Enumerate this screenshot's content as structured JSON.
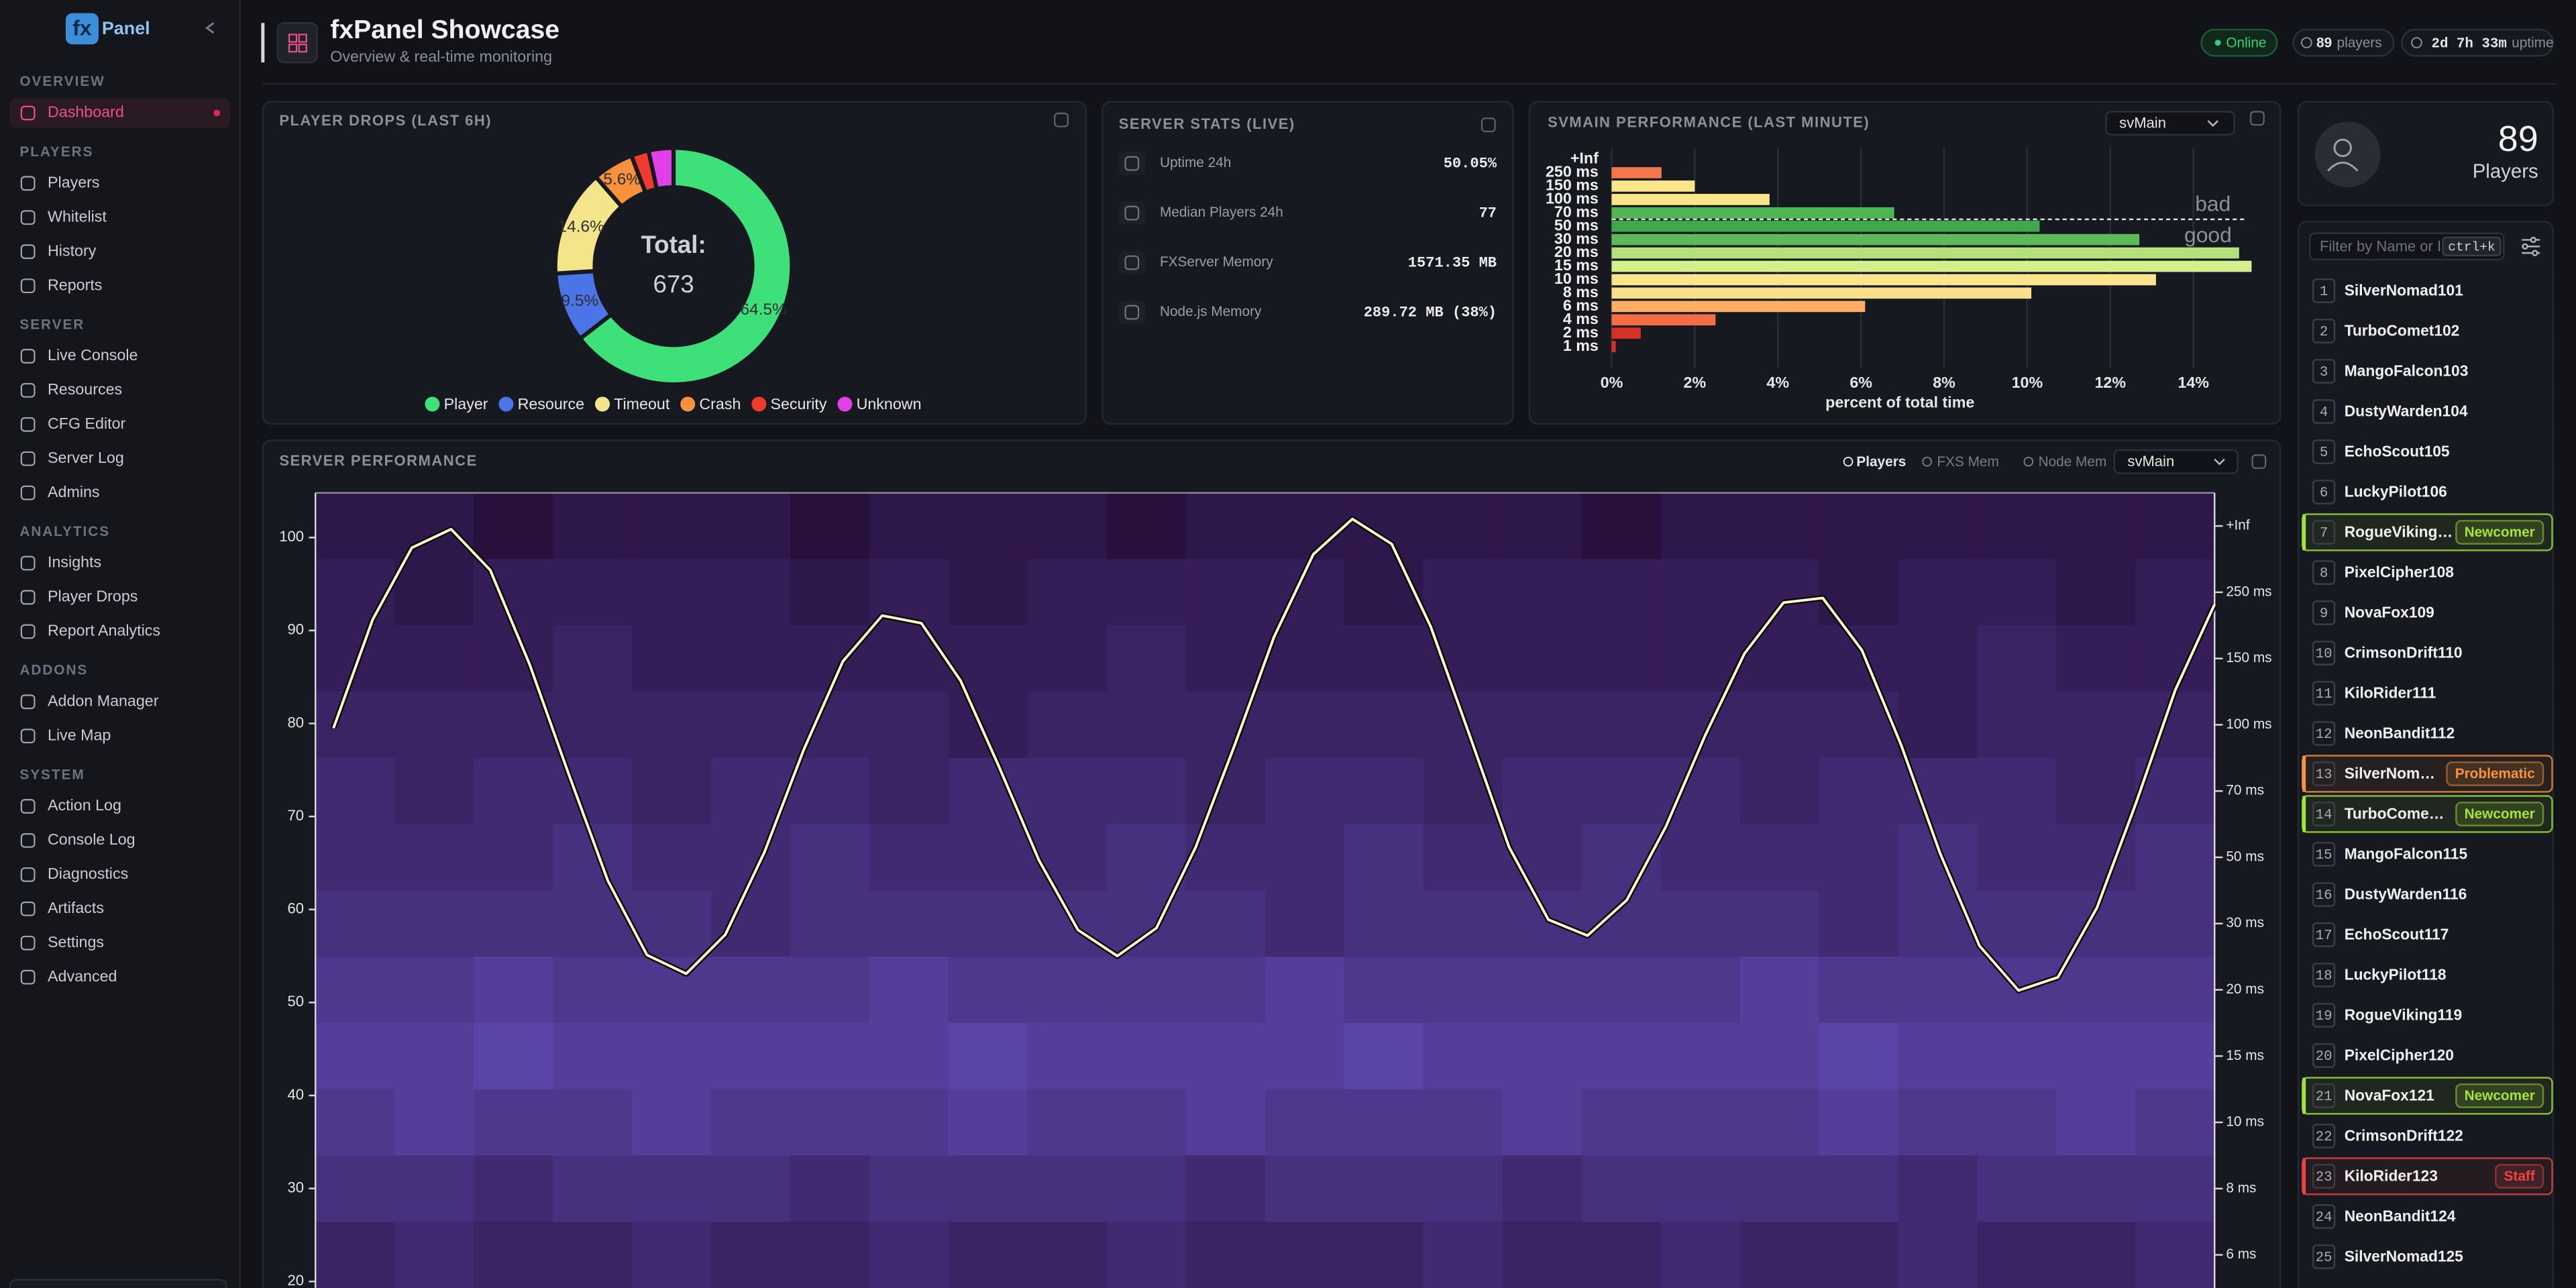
{
  "sidebar": {
    "logo": {
      "mark": "fx",
      "text": "Panel"
    },
    "active_item": "Dashboard",
    "sections": [
      {
        "title": "OVERVIEW",
        "items": [
          "Dashboard"
        ]
      },
      {
        "title": "PLAYERS",
        "items": [
          "Players",
          "Whitelist",
          "History",
          "Reports"
        ]
      },
      {
        "title": "SERVER",
        "items": [
          "Live Console",
          "Resources",
          "CFG Editor",
          "Server Log",
          "Admins"
        ]
      },
      {
        "title": "ANALYTICS",
        "items": [
          "Insights",
          "Player Drops",
          "Report Analytics"
        ]
      },
      {
        "title": "ADDONS",
        "items": [
          "Addon Manager",
          "Live Map"
        ]
      },
      {
        "title": "SYSTEM",
        "items": [
          "Action Log",
          "Console Log",
          "Diagnostics",
          "Artifacts",
          "Settings",
          "Advanced"
        ]
      }
    ]
  },
  "header": {
    "title": "fxPanel Showcase",
    "subtitle": "Overview & real-time monitoring",
    "status": "Online",
    "players": "89",
    "players_unit": "players",
    "uptime": "2d 7h 33m",
    "uptime_unit": "uptime"
  },
  "server_stats": {
    "title": "SERVER STATS (LIVE)",
    "rows": [
      {
        "label": "Uptime 24h",
        "value": "50.05%"
      },
      {
        "label": "Median Players 24h",
        "value": "77"
      },
      {
        "label": "FXServer Memory",
        "value": "1571.35 MB"
      },
      {
        "label": "Node.js Memory",
        "value": "289.72 MB (38%)"
      }
    ]
  },
  "players_panel": {
    "count": "89",
    "label": "Players",
    "filter_placeholder": "Filter by Name or I",
    "shortcut": "ctrl+k",
    "tag_colors": {
      "Newcomer": "#a3e635",
      "Problematic": "#fb923c",
      "Staff": "#ef4444"
    },
    "players": [
      {
        "rank": 1,
        "name": "SilverNomad101"
      },
      {
        "rank": 2,
        "name": "TurboComet102"
      },
      {
        "rank": 3,
        "name": "MangoFalcon103"
      },
      {
        "rank": 4,
        "name": "DustyWarden104"
      },
      {
        "rank": 5,
        "name": "EchoScout105"
      },
      {
        "rank": 6,
        "name": "LuckyPilot106"
      },
      {
        "rank": 7,
        "name": "RogueViking…",
        "tag": "Newcomer"
      },
      {
        "rank": 8,
        "name": "PixelCipher108"
      },
      {
        "rank": 9,
        "name": "NovaFox109"
      },
      {
        "rank": 10,
        "name": "CrimsonDrift110"
      },
      {
        "rank": 11,
        "name": "KiloRider111"
      },
      {
        "rank": 12,
        "name": "NeonBandit112"
      },
      {
        "rank": 13,
        "name": "SilverNom…",
        "tag": "Problematic"
      },
      {
        "rank": 14,
        "name": "TurboCome…",
        "tag": "Newcomer"
      },
      {
        "rank": 15,
        "name": "MangoFalcon115"
      },
      {
        "rank": 16,
        "name": "DustyWarden116"
      },
      {
        "rank": 17,
        "name": "EchoScout117"
      },
      {
        "rank": 18,
        "name": "LuckyPilot118"
      },
      {
        "rank": 19,
        "name": "RogueViking119"
      },
      {
        "rank": 20,
        "name": "PixelCipher120"
      },
      {
        "rank": 21,
        "name": "NovaFox121",
        "tag": "Newcomer"
      },
      {
        "rank": 22,
        "name": "CrimsonDrift122"
      },
      {
        "rank": 23,
        "name": "KiloRider123",
        "tag": "Staff"
      },
      {
        "rank": 24,
        "name": "NeonBandit124"
      },
      {
        "rank": 25,
        "name": "SilverNomad125"
      }
    ]
  },
  "chart_data": [
    {
      "type": "pie",
      "title": "PLAYER DROPS (LAST 6H)",
      "center_label": "Total:",
      "total": 673,
      "categories": [
        "Player",
        "Resource",
        "Timeout",
        "Crash",
        "Security",
        "Unknown"
      ],
      "values": [
        64.5,
        9.5,
        14.6,
        5.6,
        2.4,
        3.4
      ],
      "value_labels": [
        "64.5%",
        "9.5%",
        "14.6%",
        "5.6%",
        null,
        null
      ],
      "colors": [
        "#3ee07a",
        "#4a74e8",
        "#f4e58a",
        "#f7913d",
        "#ef3b2c",
        "#e040e8"
      ],
      "legend": "bottom"
    },
    {
      "type": "hbar",
      "title": "SVMAIN PERFORMANCE (LAST MINUTE)",
      "select": "svMain",
      "categories": [
        "+Inf",
        "250 ms",
        "150 ms",
        "100 ms",
        "70 ms",
        "50 ms",
        "30 ms",
        "20 ms",
        "15 ms",
        "10 ms",
        "8 ms",
        "6 ms",
        "4 ms",
        "2 ms",
        "1 ms"
      ],
      "values": [
        0,
        1.2,
        2.0,
        3.8,
        6.8,
        10.3,
        12.7,
        15.1,
        15.4,
        13.1,
        10.1,
        6.1,
        2.5,
        0.7,
        0.1
      ],
      "colors": [
        "#f46d43",
        "#f4774b",
        "#fde58a",
        "#fde58a",
        "#4fb653",
        "#3fa84a",
        "#5cba5a",
        "#b5e07a",
        "#d4ef8b",
        "#fbe58c",
        "#fbe08c",
        "#fdae61",
        "#f46d43",
        "#d73027",
        "#d73027"
      ],
      "xlim": [
        0,
        15.3
      ],
      "xticks": [
        {
          "value": 0,
          "label": "0%"
        },
        {
          "value": 2,
          "label": "2%"
        },
        {
          "value": 4,
          "label": "4%"
        },
        {
          "value": 6,
          "label": "6%"
        },
        {
          "value": 8,
          "label": "8%"
        },
        {
          "value": 10,
          "label": "10%"
        },
        {
          "value": 12,
          "label": "12%"
        },
        {
          "value": 14,
          "label": "14%"
        }
      ],
      "xlabel": "percent of total time",
      "annotations": [
        "bad",
        "good"
      ],
      "grid": true
    },
    {
      "type": "heatmap",
      "title": "SERVER PERFORMANCE",
      "select": "svMain",
      "toggles": [
        "FXS Mem",
        "Node Mem"
      ],
      "series": [
        {
          "name": "Players",
          "color": "#fffbd0",
          "values": [
            79.5,
            91.2,
            98.9,
            100.9,
            96.5,
            86.4,
            74.6,
            63.1,
            55.1,
            53.1,
            57.3,
            66.2,
            77.2,
            86.7,
            91.6,
            90.8,
            84.6,
            75.2,
            65.3,
            57.8,
            55,
            58.0,
            66.7,
            77.7,
            89.3,
            98.2,
            102,
            99.3,
            90.4,
            78.6,
            66.7,
            58.9,
            57.2,
            61.0,
            68.9,
            78.7,
            87.5,
            93.0,
            93.5,
            87.9,
            77.7,
            66.0,
            56.1,
            51.3,
            52.7,
            60.2,
            71.5,
            83.6,
            92.8
          ]
        }
      ],
      "ylim": [
        19.3,
        104.8
      ],
      "yticks": [
        20,
        30,
        40,
        50,
        60,
        70,
        80,
        90,
        100
      ],
      "rows": [
        "+Inf",
        "250 ms",
        "150 ms",
        "100 ms",
        "70 ms",
        "50 ms",
        "30 ms",
        "20 ms",
        "15 ms",
        "10 ms",
        "8 ms",
        "6 ms"
      ],
      "heatmap": [
        [
          2,
          2,
          1,
          2,
          2,
          2,
          1,
          2,
          2,
          2,
          1,
          2,
          2,
          2,
          2,
          2,
          1,
          2,
          2,
          2,
          2,
          2,
          2,
          2
        ],
        [
          3,
          2,
          3,
          3,
          3,
          3,
          2,
          3,
          2,
          3,
          3,
          3,
          3,
          2,
          3,
          3,
          3,
          3,
          3,
          2,
          3,
          3,
          2,
          3
        ],
        [
          3,
          3,
          3,
          4,
          3,
          3,
          3,
          3,
          3,
          3,
          4,
          3,
          3,
          3,
          3,
          3,
          3,
          3,
          3,
          3,
          3,
          4,
          3,
          3
        ],
        [
          4,
          4,
          4,
          4,
          4,
          4,
          4,
          4,
          3,
          4,
          4,
          4,
          4,
          4,
          4,
          4,
          4,
          4,
          4,
          4,
          3,
          4,
          4,
          4
        ],
        [
          5,
          4,
          5,
          5,
          4,
          5,
          5,
          4,
          5,
          5,
          5,
          4,
          5,
          5,
          4,
          5,
          5,
          5,
          4,
          5,
          5,
          5,
          4,
          5
        ],
        [
          5,
          5,
          5,
          6,
          5,
          5,
          6,
          5,
          5,
          5,
          6,
          5,
          5,
          6,
          5,
          5,
          6,
          5,
          5,
          5,
          6,
          5,
          5,
          6
        ],
        [
          6,
          6,
          6,
          6,
          6,
          5,
          6,
          6,
          6,
          6,
          6,
          6,
          5,
          6,
          6,
          6,
          6,
          6,
          6,
          5,
          6,
          6,
          6,
          6
        ],
        [
          7,
          7,
          8,
          7,
          7,
          7,
          7,
          8,
          7,
          7,
          7,
          7,
          8,
          7,
          7,
          7,
          7,
          7,
          8,
          7,
          7,
          7,
          7,
          7
        ],
        [
          8,
          8,
          9,
          8,
          8,
          8,
          8,
          8,
          9,
          8,
          8,
          8,
          8,
          9,
          8,
          8,
          8,
          8,
          8,
          9,
          8,
          8,
          8,
          8
        ],
        [
          7,
          8,
          7,
          7,
          8,
          7,
          7,
          7,
          8,
          7,
          7,
          8,
          7,
          7,
          7,
          8,
          7,
          7,
          7,
          8,
          7,
          7,
          8,
          7
        ],
        [
          6,
          6,
          5,
          6,
          6,
          6,
          5,
          6,
          6,
          6,
          6,
          5,
          6,
          6,
          6,
          5,
          6,
          6,
          6,
          6,
          5,
          6,
          6,
          6
        ],
        [
          4,
          5,
          4,
          4,
          5,
          4,
          4,
          5,
          4,
          4,
          5,
          4,
          4,
          4,
          5,
          4,
          4,
          5,
          4,
          4,
          5,
          4,
          4,
          5
        ]
      ],
      "heat_colors": [
        "#220a30",
        "#5a44a6"
      ]
    }
  ]
}
